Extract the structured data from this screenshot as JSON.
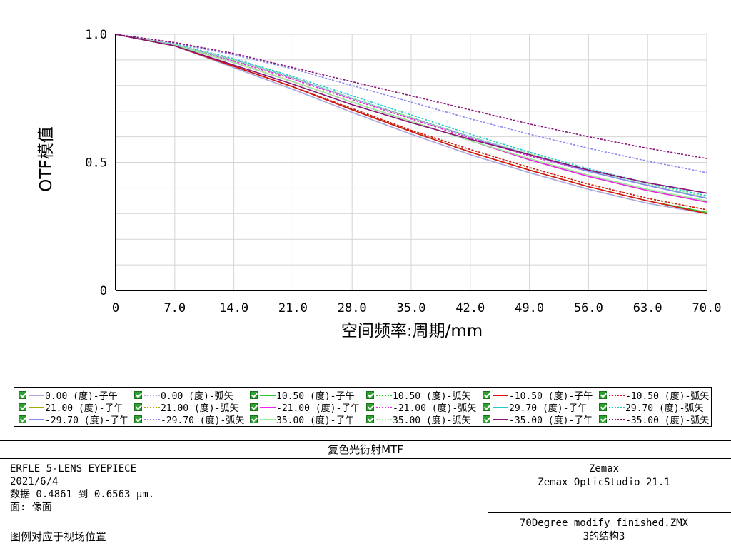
{
  "chart_data": {
    "type": "line",
    "xlabel": "空间频率:周期/mm",
    "ylabel": "OTF模值",
    "xlim": [
      0,
      70
    ],
    "ylim": [
      0,
      1
    ],
    "x_ticks": [
      "0",
      "7.0",
      "14.0",
      "21.0",
      "28.0",
      "35.0",
      "42.0",
      "49.0",
      "56.0",
      "63.0",
      "70.0"
    ],
    "y_ticks": [
      "0",
      "0.5",
      "1.0"
    ],
    "grid": true,
    "legend_placement": "bottom",
    "x": [
      0,
      7,
      14,
      21,
      28,
      35,
      42,
      49,
      56,
      63,
      70
    ],
    "series": [
      {
        "name": "0.00 (度)-子午",
        "color": "#a9a9e0",
        "style": "solid",
        "values": [
          1.0,
          0.955,
          0.87,
          0.785,
          0.695,
          0.61,
          0.53,
          0.46,
          0.395,
          0.34,
          0.3
        ]
      },
      {
        "name": "0.00 (度)-弧矢",
        "color": "#a9a9e0",
        "style": "dotted",
        "values": [
          1.0,
          0.955,
          0.87,
          0.785,
          0.695,
          0.61,
          0.53,
          0.46,
          0.395,
          0.34,
          0.3
        ]
      },
      {
        "name": "10.50 (度)-子午",
        "color": "#22cc22",
        "style": "solid",
        "values": [
          1.0,
          0.955,
          0.875,
          0.795,
          0.705,
          0.62,
          0.54,
          0.47,
          0.405,
          0.35,
          0.305
        ]
      },
      {
        "name": "10.50 (度)-弧矢",
        "color": "#22cc22",
        "style": "dotted",
        "values": [
          1.0,
          0.955,
          0.875,
          0.795,
          0.71,
          0.625,
          0.55,
          0.48,
          0.415,
          0.36,
          0.315
        ]
      },
      {
        "name": "-10.50 (度)-子午",
        "color": "#dd1111",
        "style": "solid",
        "values": [
          1.0,
          0.955,
          0.875,
          0.795,
          0.705,
          0.62,
          0.54,
          0.47,
          0.405,
          0.35,
          0.3
        ]
      },
      {
        "name": "-10.50 (度)-弧矢",
        "color": "#dd1111",
        "style": "dotted",
        "values": [
          1.0,
          0.955,
          0.875,
          0.795,
          0.71,
          0.625,
          0.55,
          0.48,
          0.415,
          0.36,
          0.315
        ]
      },
      {
        "name": "21.00 (度)-子午",
        "color": "#aaaa00",
        "style": "solid",
        "values": [
          1.0,
          0.958,
          0.89,
          0.815,
          0.735,
          0.66,
          0.585,
          0.51,
          0.445,
          0.39,
          0.345
        ]
      },
      {
        "name": "21.00 (度)-弧矢",
        "color": "#aaaa00",
        "style": "dotted",
        "values": [
          1.0,
          0.958,
          0.895,
          0.825,
          0.745,
          0.67,
          0.595,
          0.525,
          0.465,
          0.41,
          0.36
        ]
      },
      {
        "name": "-21.00 (度)-子午",
        "color": "#ee22ee",
        "style": "solid",
        "values": [
          1.0,
          0.958,
          0.89,
          0.815,
          0.735,
          0.66,
          0.585,
          0.51,
          0.445,
          0.39,
          0.345
        ]
      },
      {
        "name": "-21.00 (度)-弧矢",
        "color": "#ee22ee",
        "style": "dotted",
        "values": [
          1.0,
          0.958,
          0.895,
          0.825,
          0.745,
          0.67,
          0.595,
          0.525,
          0.465,
          0.41,
          0.36
        ]
      },
      {
        "name": "29.70 (度)-子午",
        "color": "#22cccc",
        "style": "solid",
        "values": [
          1.0,
          0.96,
          0.9,
          0.83,
          0.75,
          0.675,
          0.6,
          0.53,
          0.465,
          0.41,
          0.36
        ]
      },
      {
        "name": "29.70 (度)-弧矢",
        "color": "#22cccc",
        "style": "dotted",
        "values": [
          1.0,
          0.962,
          0.905,
          0.835,
          0.76,
          0.685,
          0.61,
          0.54,
          0.475,
          0.42,
          0.37
        ]
      },
      {
        "name": "-29.70 (度)-子午",
        "color": "#8888ee",
        "style": "solid",
        "values": [
          1.0,
          0.96,
          0.9,
          0.83,
          0.75,
          0.675,
          0.6,
          0.53,
          0.465,
          0.41,
          0.36
        ]
      },
      {
        "name": "-29.70 (度)-弧矢",
        "color": "#8888ee",
        "style": "dotted",
        "values": [
          1.0,
          0.965,
          0.92,
          0.865,
          0.8,
          0.735,
          0.67,
          0.61,
          0.555,
          0.505,
          0.46
        ]
      },
      {
        "name": "35.00 (度)-子午",
        "color": "#99ee99",
        "style": "solid",
        "values": [
          1.0,
          0.958,
          0.89,
          0.815,
          0.735,
          0.66,
          0.585,
          0.515,
          0.45,
          0.395,
          0.35
        ]
      },
      {
        "name": "35.00 (度)-弧矢",
        "color": "#99ee99",
        "style": "dotted",
        "values": [
          1.0,
          0.96,
          0.9,
          0.83,
          0.75,
          0.675,
          0.6,
          0.535,
          0.47,
          0.415,
          0.365
        ]
      },
      {
        "name": "-35.00 (度)-子午",
        "color": "#881177",
        "style": "solid",
        "values": [
          1.0,
          0.955,
          0.88,
          0.805,
          0.725,
          0.655,
          0.59,
          0.53,
          0.47,
          0.42,
          0.38
        ]
      },
      {
        "name": "-35.00 (度)-弧矢",
        "color": "#881177",
        "style": "dotted",
        "values": [
          1.0,
          0.968,
          0.925,
          0.87,
          0.815,
          0.76,
          0.705,
          0.65,
          0.6,
          0.555,
          0.515
        ]
      }
    ]
  },
  "legend": {
    "items": [
      "0.00 (度)-子午",
      "0.00 (度)-弧矢",
      "10.50 (度)-子午",
      "10.50 (度)-弧矢",
      "-10.50 (度)-子午",
      "-10.50 (度)-弧矢",
      "21.00 (度)-子午",
      "21.00 (度)-弧矢",
      "-21.00 (度)-子午",
      "-21.00 (度)-弧矢",
      "29.70 (度)-子午",
      "29.70 (度)-弧矢",
      "-29.70 (度)-子午",
      "-29.70 (度)-弧矢",
      "35.00 (度)-子午",
      "35.00 (度)-弧矢",
      "-35.00 (度)-子午",
      "-35.00 (度)-弧矢"
    ]
  },
  "panel": {
    "title": "复色光衍射MTF",
    "lines": [
      "ERFLE 5-LENS EYEPIECE",
      "2021/6/4",
      "数据 0.4861 到 0.6563 μm.",
      "面: 像面"
    ],
    "footnote": "图例对应于视场位置",
    "company": "Zemax",
    "product": "Zemax OpticStudio 21.1",
    "file": "70Degree modify finished.ZMX",
    "config": "3的结构3"
  }
}
